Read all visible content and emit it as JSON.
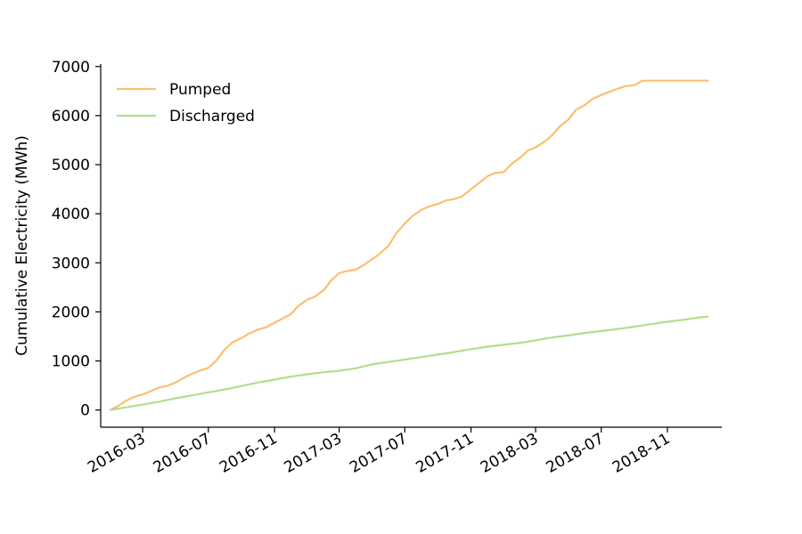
{
  "chart_data": {
    "type": "line",
    "title": "",
    "xlabel": "",
    "ylabel": "Cumulative Electricity (MWh)",
    "xlim": [
      "2015-12-14",
      "2019-02-10"
    ],
    "ylim": [
      -350,
      7050
    ],
    "grid": false,
    "legend_position": "top-left",
    "x_ticks": [
      "2016-03",
      "2016-07",
      "2016-11",
      "2017-03",
      "2017-07",
      "2017-11",
      "2018-03",
      "2018-07",
      "2018-11"
    ],
    "y_ticks": [
      0,
      1000,
      2000,
      3000,
      4000,
      5000,
      6000,
      7000
    ],
    "series": [
      {
        "name": "Pumped",
        "color": "#fdbf6f",
        "x": [
          "2016-01-01",
          "2016-01-15",
          "2016-02-01",
          "2016-02-15",
          "2016-03-01",
          "2016-03-15",
          "2016-04-01",
          "2016-04-15",
          "2016-05-01",
          "2016-05-15",
          "2016-06-01",
          "2016-06-15",
          "2016-07-01",
          "2016-07-15",
          "2016-08-01",
          "2016-08-15",
          "2016-09-01",
          "2016-09-15",
          "2016-10-01",
          "2016-10-15",
          "2016-11-01",
          "2016-11-15",
          "2016-12-01",
          "2016-12-15",
          "2017-01-01",
          "2017-01-15",
          "2017-02-01",
          "2017-02-15",
          "2017-03-01",
          "2017-03-15",
          "2017-04-01",
          "2017-04-15",
          "2017-05-01",
          "2017-05-15",
          "2017-06-01",
          "2017-06-15",
          "2017-07-01",
          "2017-07-15",
          "2017-08-01",
          "2017-08-15",
          "2017-09-01",
          "2017-09-15",
          "2017-10-01",
          "2017-10-15",
          "2017-11-01",
          "2017-11-15",
          "2017-12-01",
          "2017-12-15",
          "2018-01-01",
          "2018-01-15",
          "2018-02-01",
          "2018-02-15",
          "2018-03-01",
          "2018-03-15",
          "2018-04-01",
          "2018-04-15",
          "2018-05-01",
          "2018-05-15",
          "2018-06-01",
          "2018-06-15",
          "2018-07-01",
          "2018-07-15",
          "2018-08-01",
          "2018-08-15",
          "2018-09-01",
          "2018-09-15",
          "2018-10-01",
          "2018-10-15",
          "2018-11-01",
          "2018-11-15",
          "2018-12-01",
          "2018-12-15",
          "2019-01-01",
          "2019-01-15"
        ],
        "values": [
          0,
          80,
          200,
          270,
          320,
          380,
          460,
          490,
          560,
          650,
          740,
          800,
          860,
          1000,
          1240,
          1380,
          1470,
          1560,
          1640,
          1680,
          1780,
          1860,
          1950,
          2120,
          2250,
          2310,
          2450,
          2650,
          2790,
          2830,
          2860,
          2950,
          3070,
          3180,
          3350,
          3600,
          3800,
          3950,
          4080,
          4150,
          4200,
          4270,
          4300,
          4350,
          4500,
          4620,
          4760,
          4830,
          4850,
          5010,
          5150,
          5290,
          5350,
          5450,
          5600,
          5780,
          5920,
          6120,
          6220,
          6340,
          6420,
          6480,
          6550,
          6600,
          6620,
          6710,
          6710,
          6710,
          6710,
          6710,
          6710,
          6710,
          6710,
          6710
        ]
      },
      {
        "name": "Discharged",
        "color": "#b2df8a",
        "x": [
          "2016-01-01",
          "2016-02-01",
          "2016-03-01",
          "2016-04-01",
          "2016-05-01",
          "2016-06-01",
          "2016-07-01",
          "2016-08-01",
          "2016-09-01",
          "2016-10-01",
          "2016-11-01",
          "2016-12-01",
          "2017-01-01",
          "2017-02-01",
          "2017-03-01",
          "2017-04-01",
          "2017-05-01",
          "2017-06-01",
          "2017-07-01",
          "2017-08-01",
          "2017-09-01",
          "2017-10-01",
          "2017-11-01",
          "2017-12-01",
          "2018-01-01",
          "2018-02-01",
          "2018-03-01",
          "2018-04-01",
          "2018-05-01",
          "2018-06-01",
          "2018-07-01",
          "2018-08-01",
          "2018-09-01",
          "2018-10-01",
          "2018-11-01",
          "2018-12-01",
          "2019-01-01",
          "2019-01-15"
        ],
        "values": [
          0,
          60,
          110,
          170,
          240,
          300,
          360,
          420,
          490,
          560,
          620,
          680,
          730,
          770,
          800,
          850,
          930,
          980,
          1030,
          1080,
          1130,
          1180,
          1240,
          1290,
          1330,
          1370,
          1420,
          1480,
          1520,
          1570,
          1610,
          1650,
          1700,
          1750,
          1800,
          1840,
          1890,
          1900
        ]
      }
    ]
  }
}
